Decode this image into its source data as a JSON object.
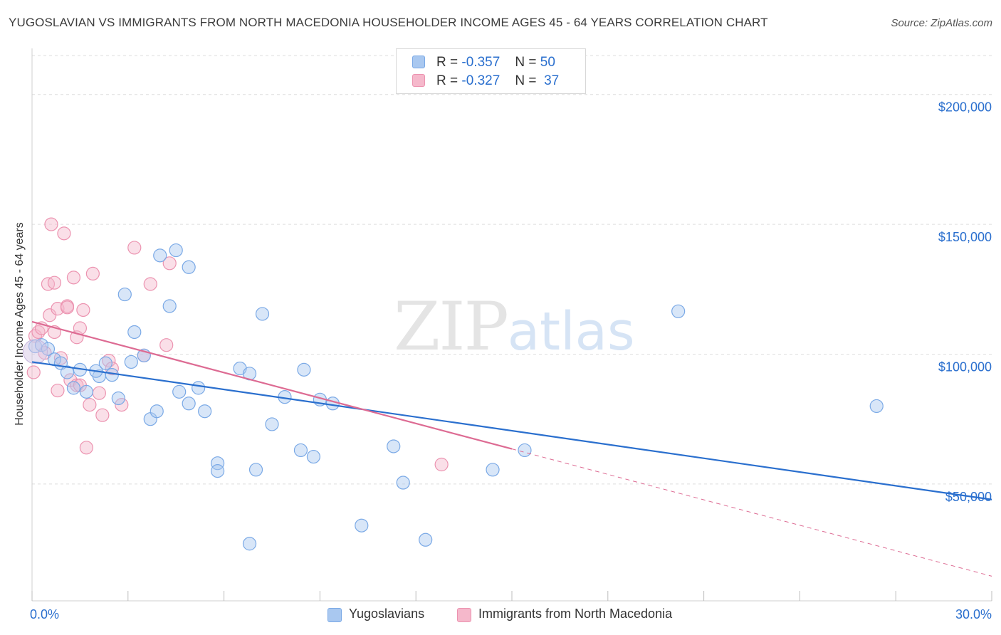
{
  "title": "YUGOSLAVIAN VS IMMIGRANTS FROM NORTH MACEDONIA HOUSEHOLDER INCOME AGES 45 - 64 YEARS CORRELATION CHART",
  "source": "Source: ZipAtlas.com",
  "watermark": {
    "zip": "ZIP",
    "atlas": "atlas"
  },
  "colors": {
    "blue_fill": "#a9c8f0",
    "blue_stroke": "#7aa9e6",
    "blue_line": "#2a6fce",
    "pink_fill": "#f5b8cb",
    "pink_stroke": "#ec93b0",
    "pink_line": "#dd6b93",
    "axis_label_blue": "#2a6fce",
    "grid": "#dedede"
  },
  "legend": {
    "r_label": "R =",
    "n_label": "N =",
    "series": [
      {
        "r": "-0.357",
        "n": "50"
      },
      {
        "r": "-0.327",
        "n": "37"
      }
    ]
  },
  "chart_data": {
    "type": "scatter",
    "title": "YUGOSLAVIAN VS IMMIGRANTS FROM NORTH MACEDONIA HOUSEHOLDER INCOME AGES 45 - 64 YEARS CORRELATION CHART",
    "xlabel": "",
    "ylabel": "Householder Income Ages 45 - 64 years",
    "xlim": [
      0,
      30
    ],
    "ylim": [
      5000,
      215000
    ],
    "x_tick_labels": [
      "0.0%",
      "30.0%"
    ],
    "y_ticks": [
      50000,
      100000,
      150000,
      200000
    ],
    "y_tick_labels": [
      "$50,000",
      "$100,000",
      "$150,000",
      "$200,000"
    ],
    "grid": true,
    "legend_position": "top-center",
    "series": [
      {
        "name": "Yugoslavians",
        "color": "#a9c8f0",
        "trend": {
          "x": [
            0,
            30
          ],
          "y": [
            97000,
            44000
          ],
          "dashed_after": null
        },
        "points": [
          [
            0.1,
            103000
          ],
          [
            0.3,
            103500
          ],
          [
            0.5,
            102000
          ],
          [
            0.7,
            98000
          ],
          [
            0.9,
            96500
          ],
          [
            1.1,
            93000
          ],
          [
            1.3,
            87000
          ],
          [
            1.5,
            94000
          ],
          [
            1.7,
            85500
          ],
          [
            2.1,
            91500
          ],
          [
            2.0,
            93500
          ],
          [
            2.3,
            96500
          ],
          [
            2.5,
            92000
          ],
          [
            2.7,
            83000
          ],
          [
            2.9,
            123000
          ],
          [
            3.1,
            97000
          ],
          [
            3.2,
            108500
          ],
          [
            3.5,
            99500
          ],
          [
            3.7,
            75000
          ],
          [
            3.9,
            78000
          ],
          [
            4.0,
            138000
          ],
          [
            4.3,
            118500
          ],
          [
            4.5,
            140000
          ],
          [
            4.6,
            85500
          ],
          [
            4.9,
            81000
          ],
          [
            4.9,
            133500
          ],
          [
            5.2,
            87000
          ],
          [
            5.4,
            78000
          ],
          [
            5.8,
            58000
          ],
          [
            5.8,
            55000
          ],
          [
            6.5,
            94500
          ],
          [
            6.8,
            92500
          ],
          [
            6.8,
            27000
          ],
          [
            7.0,
            55500
          ],
          [
            7.2,
            115500
          ],
          [
            7.5,
            73000
          ],
          [
            7.9,
            83500
          ],
          [
            8.4,
            63000
          ],
          [
            8.5,
            94000
          ],
          [
            8.8,
            60500
          ],
          [
            9.0,
            82500
          ],
          [
            9.4,
            81000
          ],
          [
            10.3,
            34000
          ],
          [
            11.3,
            64500
          ],
          [
            11.6,
            50500
          ],
          [
            12.3,
            28500
          ],
          [
            14.4,
            55500
          ],
          [
            15.4,
            63000
          ],
          [
            20.2,
            116500
          ],
          [
            26.4,
            80000
          ]
        ]
      },
      {
        "name": "Immigrants from North Macedonia",
        "color": "#f5b8cb",
        "trend": {
          "x": [
            0,
            15
          ],
          "y": [
            112500,
            63500
          ],
          "dashed_to": [
            30,
            14500
          ]
        },
        "points": [
          [
            0.05,
            93000
          ],
          [
            0.1,
            107000
          ],
          [
            0.2,
            108500
          ],
          [
            0.3,
            110000
          ],
          [
            0.4,
            100500
          ],
          [
            0.5,
            127000
          ],
          [
            0.55,
            115000
          ],
          [
            0.6,
            150000
          ],
          [
            0.7,
            127500
          ],
          [
            0.7,
            108500
          ],
          [
            0.8,
            86000
          ],
          [
            0.8,
            117500
          ],
          [
            0.9,
            98500
          ],
          [
            1.0,
            146500
          ],
          [
            1.1,
            118500
          ],
          [
            1.1,
            118000
          ],
          [
            1.2,
            90000
          ],
          [
            1.3,
            129500
          ],
          [
            1.4,
            88000
          ],
          [
            1.4,
            106500
          ],
          [
            1.5,
            110000
          ],
          [
            1.5,
            88000
          ],
          [
            1.6,
            117000
          ],
          [
            1.8,
            80500
          ],
          [
            1.9,
            131000
          ],
          [
            2.1,
            85000
          ],
          [
            2.2,
            76500
          ],
          [
            2.4,
            97500
          ],
          [
            2.5,
            94500
          ],
          [
            2.8,
            80500
          ],
          [
            3.2,
            141000
          ],
          [
            3.5,
            99500
          ],
          [
            3.7,
            127000
          ],
          [
            4.2,
            103500
          ],
          [
            4.3,
            135000
          ],
          [
            1.7,
            64000
          ],
          [
            12.8,
            57500
          ]
        ]
      }
    ]
  },
  "bottom_legend": [
    "Yugoslavians",
    "Immigrants from North Macedonia"
  ],
  "big_point": {
    "x": 0.1,
    "y": 101000
  }
}
